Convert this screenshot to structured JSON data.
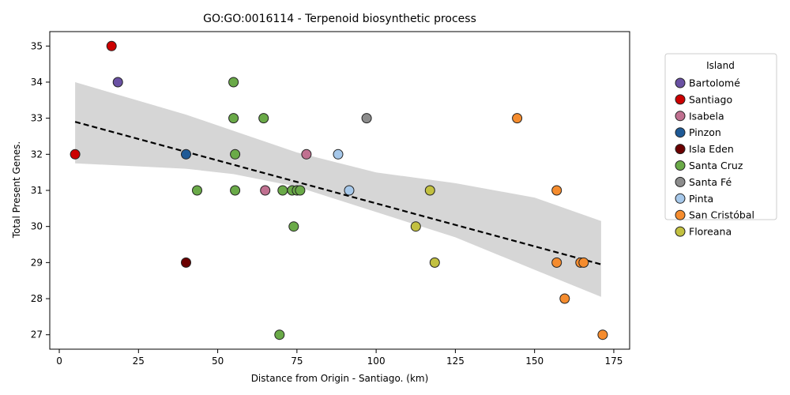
{
  "chart_data": {
    "type": "scatter",
    "title": "GO:GO:0016114 - Terpenoid biosynthetic process",
    "xlabel": "Distance from Origin - Santiago. (km)",
    "ylabel": "Total Present Genes.",
    "xlim": [
      -3,
      180
    ],
    "ylim": [
      26.6,
      35.4
    ],
    "xticks": [
      0,
      25,
      50,
      75,
      100,
      125,
      150,
      175
    ],
    "yticks": [
      27,
      28,
      29,
      30,
      31,
      32,
      33,
      34,
      35
    ],
    "grid": false,
    "legend": {
      "title": "Island",
      "placement": "outside-right"
    },
    "trendline": {
      "x": [
        5,
        171
      ],
      "y": [
        32.9,
        28.95
      ],
      "style": "dashed",
      "color": "#000000"
    },
    "confidence_band": {
      "color": "#d6d6d6",
      "x": [
        5,
        40,
        55,
        75,
        100,
        125,
        150,
        171
      ],
      "upper": [
        34.0,
        33.1,
        32.65,
        32.05,
        31.5,
        31.2,
        30.8,
        30.15
      ],
      "lower": [
        31.75,
        31.6,
        31.45,
        31.1,
        30.4,
        29.7,
        28.8,
        28.05
      ]
    },
    "series": [
      {
        "name": "Bartolomé",
        "color": "#6a51a3",
        "points": [
          [
            18.5,
            34
          ]
        ]
      },
      {
        "name": "Santiago",
        "color": "#cc0000",
        "points": [
          [
            16.5,
            35
          ],
          [
            5,
            32
          ]
        ]
      },
      {
        "name": "Isabela",
        "color": "#c07090",
        "points": [
          [
            78,
            32
          ],
          [
            65,
            31
          ]
        ]
      },
      {
        "name": "Pinzon",
        "color": "#1f5a96",
        "points": [
          [
            40,
            32
          ]
        ]
      },
      {
        "name": "Isla Eden",
        "color": "#6b0000",
        "points": [
          [
            40,
            29
          ]
        ]
      },
      {
        "name": "Santa Cruz",
        "color": "#6aaa48",
        "points": [
          [
            55,
            34
          ],
          [
            55,
            33
          ],
          [
            64.5,
            33
          ],
          [
            55.5,
            32
          ],
          [
            43.5,
            31
          ],
          [
            55.5,
            31
          ],
          [
            70.5,
            31
          ],
          [
            73.5,
            31
          ],
          [
            75,
            31
          ],
          [
            76,
            31
          ],
          [
            74,
            30
          ],
          [
            69.5,
            27
          ]
        ]
      },
      {
        "name": "Santa Fé",
        "color": "#8c8c8c",
        "points": [
          [
            97,
            33
          ]
        ]
      },
      {
        "name": "Pinta",
        "color": "#a6c8ea",
        "points": [
          [
            88,
            32
          ],
          [
            91.5,
            31
          ]
        ]
      },
      {
        "name": "San Cristóbal",
        "color": "#f58c2e",
        "points": [
          [
            144.5,
            33
          ],
          [
            157,
            31
          ],
          [
            157,
            29
          ],
          [
            164.5,
            29
          ],
          [
            165.5,
            29
          ],
          [
            159.5,
            28
          ],
          [
            171.5,
            27
          ]
        ]
      },
      {
        "name": "Floreana",
        "color": "#c2c040",
        "points": [
          [
            117,
            31
          ],
          [
            112.5,
            30
          ],
          [
            118.5,
            29
          ]
        ]
      }
    ]
  }
}
